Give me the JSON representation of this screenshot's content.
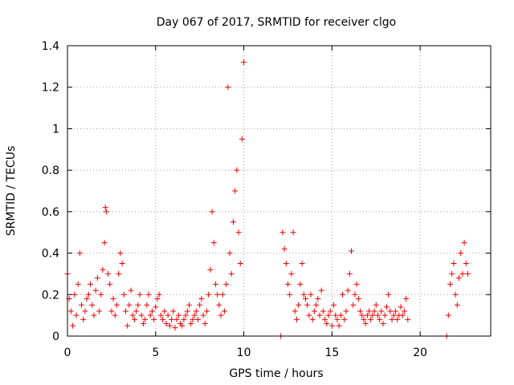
{
  "chart_data": {
    "type": "scatter",
    "title": "Day 067 of 2017, SRMTID for receiver clgo",
    "xlabel": "GPS time / hours",
    "ylabel": "SRMTID / TECUs",
    "xlim": [
      0,
      24
    ],
    "ylim": [
      0,
      1.4
    ],
    "xticks": [
      0,
      5,
      10,
      15,
      20
    ],
    "yticks": [
      0,
      0.2,
      0.4,
      0.6,
      0.8,
      1.0,
      1.2,
      1.4
    ],
    "xtick_labels": [
      "0",
      "5",
      "10",
      "15",
      "20"
    ],
    "ytick_labels": [
      "0",
      "0.2",
      "0.4",
      "0.6",
      "0.8",
      "1",
      "1.2",
      "1.4"
    ],
    "grid": true,
    "marker": "+",
    "series": [
      {
        "name": "SRMTID",
        "color": "#ee0000",
        "x": [
          0.0,
          0.1,
          0.2,
          0.3,
          0.4,
          0.5,
          0.6,
          0.7,
          0.8,
          0.9,
          1.0,
          1.1,
          1.2,
          1.3,
          1.4,
          1.5,
          1.6,
          1.7,
          1.8,
          1.9,
          2.0,
          2.1,
          2.15,
          2.2,
          2.3,
          2.4,
          2.5,
          2.6,
          2.7,
          2.8,
          2.9,
          3.0,
          3.1,
          3.2,
          3.3,
          3.4,
          3.5,
          3.6,
          3.7,
          3.8,
          3.9,
          4.0,
          4.1,
          4.2,
          4.3,
          4.4,
          4.5,
          4.6,
          4.7,
          4.8,
          4.9,
          5.0,
          5.1,
          5.2,
          5.3,
          5.4,
          5.5,
          5.6,
          5.7,
          5.8,
          5.9,
          6.0,
          6.1,
          6.2,
          6.3,
          6.4,
          6.5,
          6.6,
          6.7,
          6.8,
          6.9,
          7.0,
          7.1,
          7.2,
          7.3,
          7.4,
          7.5,
          7.6,
          7.7,
          7.8,
          7.9,
          8.0,
          8.1,
          8.2,
          8.3,
          8.4,
          8.5,
          8.6,
          8.7,
          8.8,
          8.9,
          9.0,
          9.1,
          9.2,
          9.3,
          9.4,
          9.5,
          9.6,
          9.7,
          9.8,
          9.9,
          10.0,
          12.1,
          12.2,
          12.3,
          12.4,
          12.5,
          12.6,
          12.7,
          12.8,
          12.9,
          13.0,
          13.1,
          13.2,
          13.3,
          13.4,
          13.5,
          13.6,
          13.7,
          13.8,
          13.9,
          14.0,
          14.1,
          14.2,
          14.3,
          14.4,
          14.5,
          14.6,
          14.7,
          14.8,
          14.9,
          15.0,
          15.1,
          15.2,
          15.3,
          15.4,
          15.5,
          15.6,
          15.7,
          15.8,
          15.9,
          16.0,
          16.1,
          16.2,
          16.3,
          16.4,
          16.5,
          16.6,
          16.7,
          16.8,
          16.9,
          17.0,
          17.1,
          17.2,
          17.3,
          17.4,
          17.5,
          17.6,
          17.7,
          17.8,
          17.9,
          18.0,
          18.1,
          18.2,
          18.3,
          18.4,
          18.5,
          18.6,
          18.7,
          18.8,
          18.9,
          19.0,
          19.1,
          19.2,
          19.3,
          21.5,
          21.6,
          21.7,
          21.8,
          21.9,
          22.0,
          22.1,
          22.2,
          22.3,
          22.4,
          22.5,
          22.6,
          22.7
        ],
        "y": [
          0.3,
          0.18,
          0.12,
          0.05,
          0.2,
          0.1,
          0.25,
          0.4,
          0.15,
          0.08,
          0.12,
          0.18,
          0.2,
          0.25,
          0.15,
          0.1,
          0.22,
          0.28,
          0.12,
          0.2,
          0.32,
          0.45,
          0.62,
          0.6,
          0.3,
          0.25,
          0.12,
          0.18,
          0.1,
          0.15,
          0.3,
          0.4,
          0.35,
          0.2,
          0.12,
          0.05,
          0.15,
          0.22,
          0.1,
          0.08,
          0.12,
          0.15,
          0.2,
          0.1,
          0.06,
          0.08,
          0.15,
          0.2,
          0.1,
          0.12,
          0.08,
          0.14,
          0.18,
          0.2,
          0.1,
          0.08,
          0.12,
          0.06,
          0.1,
          0.05,
          0.08,
          0.12,
          0.04,
          0.08,
          0.1,
          0.06,
          0.05,
          0.08,
          0.1,
          0.12,
          0.15,
          0.06,
          0.08,
          0.1,
          0.12,
          0.08,
          0.15,
          0.18,
          0.1,
          0.06,
          0.12,
          0.2,
          0.32,
          0.6,
          0.45,
          0.25,
          0.2,
          0.15,
          0.1,
          0.2,
          0.12,
          0.25,
          1.2,
          0.4,
          0.3,
          0.55,
          0.7,
          0.8,
          0.5,
          0.35,
          0.95,
          1.32,
          0.0,
          0.5,
          0.42,
          0.35,
          0.25,
          0.2,
          0.3,
          0.5,
          0.12,
          0.08,
          0.15,
          0.25,
          0.35,
          0.2,
          0.18,
          0.15,
          0.1,
          0.2,
          0.08,
          0.12,
          0.15,
          0.18,
          0.1,
          0.22,
          0.12,
          0.08,
          0.06,
          0.1,
          0.12,
          0.05,
          0.15,
          0.1,
          0.08,
          0.05,
          0.1,
          0.2,
          0.08,
          0.12,
          0.22,
          0.3,
          0.41,
          0.15,
          0.2,
          0.25,
          0.18,
          0.12,
          0.1,
          0.08,
          0.06,
          0.1,
          0.12,
          0.08,
          0.1,
          0.12,
          0.15,
          0.1,
          0.08,
          0.12,
          0.06,
          0.1,
          0.14,
          0.2,
          0.12,
          0.08,
          0.1,
          0.12,
          0.08,
          0.1,
          0.14,
          0.1,
          0.12,
          0.18,
          0.08,
          0.0,
          0.1,
          0.25,
          0.3,
          0.35,
          0.2,
          0.15,
          0.28,
          0.4,
          0.3,
          0.45,
          0.35,
          0.3
        ]
      }
    ]
  }
}
